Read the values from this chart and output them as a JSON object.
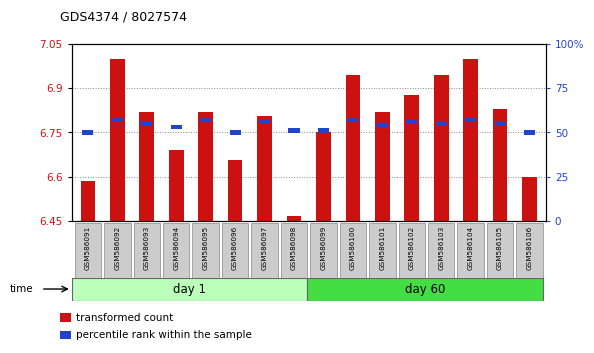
{
  "title": "GDS4374 / 8027574",
  "samples": [
    "GSM586091",
    "GSM586092",
    "GSM586093",
    "GSM586094",
    "GSM586095",
    "GSM586096",
    "GSM586097",
    "GSM586098",
    "GSM586099",
    "GSM586100",
    "GSM586101",
    "GSM586102",
    "GSM586103",
    "GSM586104",
    "GSM586105",
    "GSM586106"
  ],
  "transformed_count": [
    6.585,
    7.0,
    6.82,
    6.69,
    6.82,
    6.655,
    6.805,
    6.465,
    6.752,
    6.945,
    6.82,
    6.875,
    6.945,
    7.0,
    6.83,
    6.598
  ],
  "percentile_rank": [
    50,
    57,
    55,
    53,
    57,
    50,
    56,
    51,
    51,
    57,
    54,
    56,
    55,
    57,
    55,
    50
  ],
  "baseline": 6.45,
  "ylim_left": [
    6.45,
    7.05
  ],
  "ylim_right": [
    0,
    100
  ],
  "yticks_left": [
    6.45,
    6.6,
    6.75,
    6.9,
    7.05
  ],
  "yticks_right": [
    0,
    25,
    50,
    75,
    100
  ],
  "ytick_labels_left": [
    "6.45",
    "6.6",
    "6.75",
    "6.9",
    "7.05"
  ],
  "ytick_labels_right": [
    "0",
    "25",
    "50",
    "75",
    "100%"
  ],
  "bar_color": "#cc1111",
  "percentile_color": "#2244cc",
  "grid_color": "#888888",
  "day1_color": "#bbffbb",
  "day60_color": "#44dd44",
  "day1_samples": 8,
  "day60_samples": 8,
  "day1_label": "day 1",
  "day60_label": "day 60",
  "time_label": "time",
  "legend_bar_label": "transformed count",
  "legend_pct_label": "percentile rank within the sample",
  "bar_width": 0.5,
  "background_color": "#ffffff",
  "plot_bg_color": "#ffffff",
  "tick_label_bg": "#cccccc",
  "tick_label_edge": "#888888"
}
